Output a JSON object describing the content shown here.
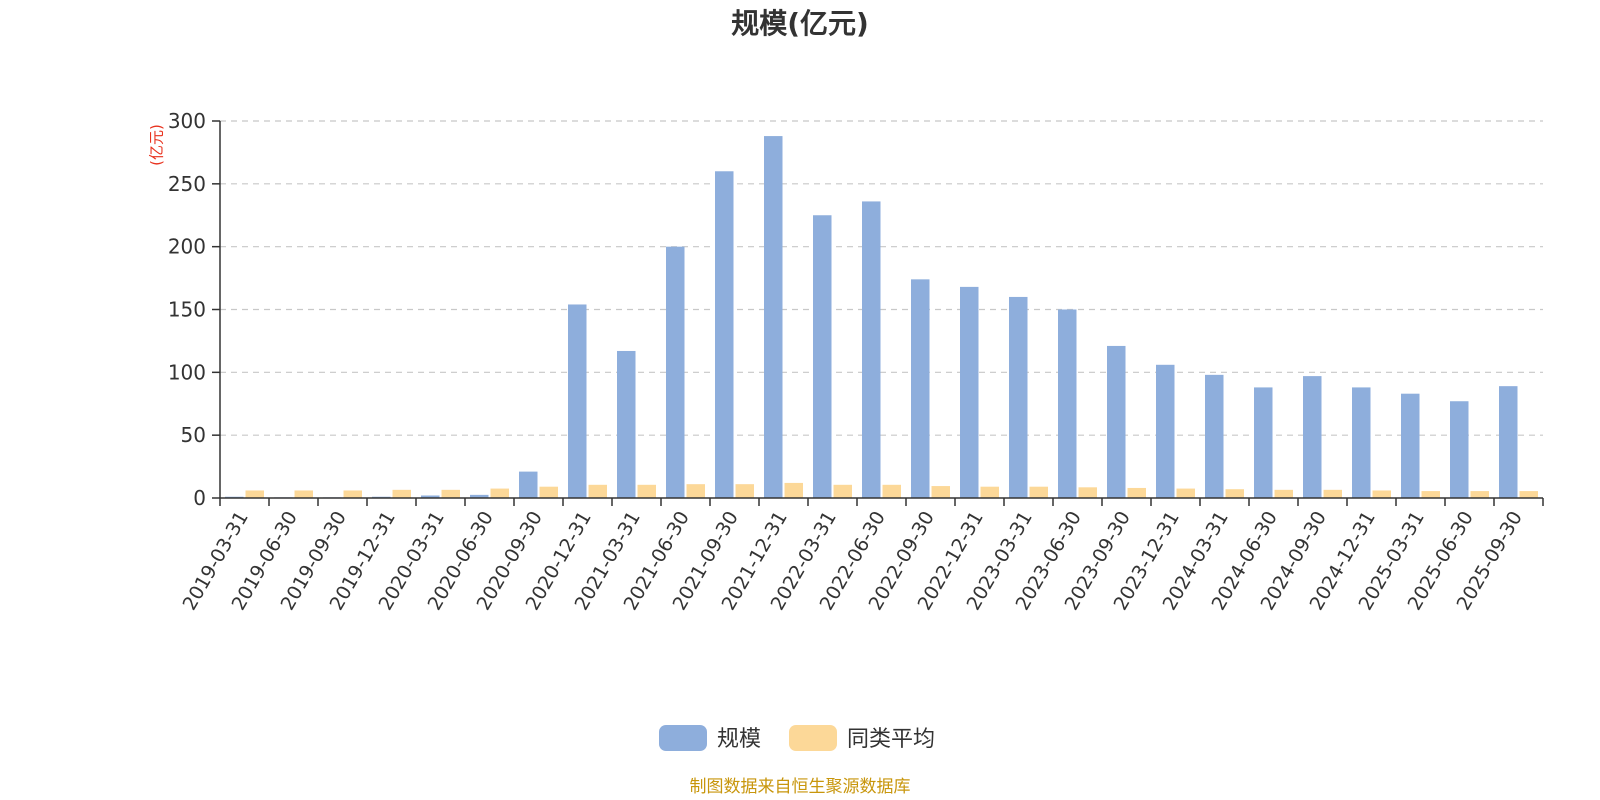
{
  "chart_data": {
    "type": "bar",
    "title": "规模(亿元)",
    "ylabel": "(亿元)",
    "xlabel": "",
    "ylim": [
      0,
      300
    ],
    "yticks": [
      0,
      50,
      100,
      150,
      200,
      250,
      300
    ],
    "grid": true,
    "legend_position": "bottom",
    "categories": [
      "2019-03-31",
      "2019-06-30",
      "2019-09-30",
      "2019-12-31",
      "2020-03-31",
      "2020-06-30",
      "2020-09-30",
      "2020-12-31",
      "2021-03-31",
      "2021-06-30",
      "2021-09-30",
      "2021-12-31",
      "2022-03-31",
      "2022-06-30",
      "2022-09-30",
      "2022-12-31",
      "2023-03-31",
      "2023-06-30",
      "2023-09-30",
      "2023-12-31",
      "2024-03-31",
      "2024-06-30",
      "2024-09-30",
      "2024-12-31",
      "2025-03-31",
      "2025-06-30",
      "2025-09-30"
    ],
    "series": [
      {
        "name": "规模",
        "color": "#8eaedc",
        "values": [
          1,
          0.5,
          0.5,
          1,
          2,
          2.5,
          21,
          154,
          117,
          200,
          260,
          288,
          225,
          236,
          174,
          168,
          160,
          150,
          121,
          106,
          98,
          88,
          97,
          88,
          83,
          77,
          89
        ]
      },
      {
        "name": "同类平均",
        "color": "#fcd898",
        "values": [
          6,
          6,
          6,
          6.5,
          6.5,
          7.5,
          9,
          10.5,
          10.5,
          11,
          11,
          12,
          10.5,
          10.5,
          9.5,
          9,
          9,
          8.5,
          8,
          7.5,
          7,
          6.5,
          6.5,
          6,
          5.5,
          5.5,
          5.5
        ]
      }
    ]
  },
  "source_text": "制图数据来自恒生聚源数据库"
}
